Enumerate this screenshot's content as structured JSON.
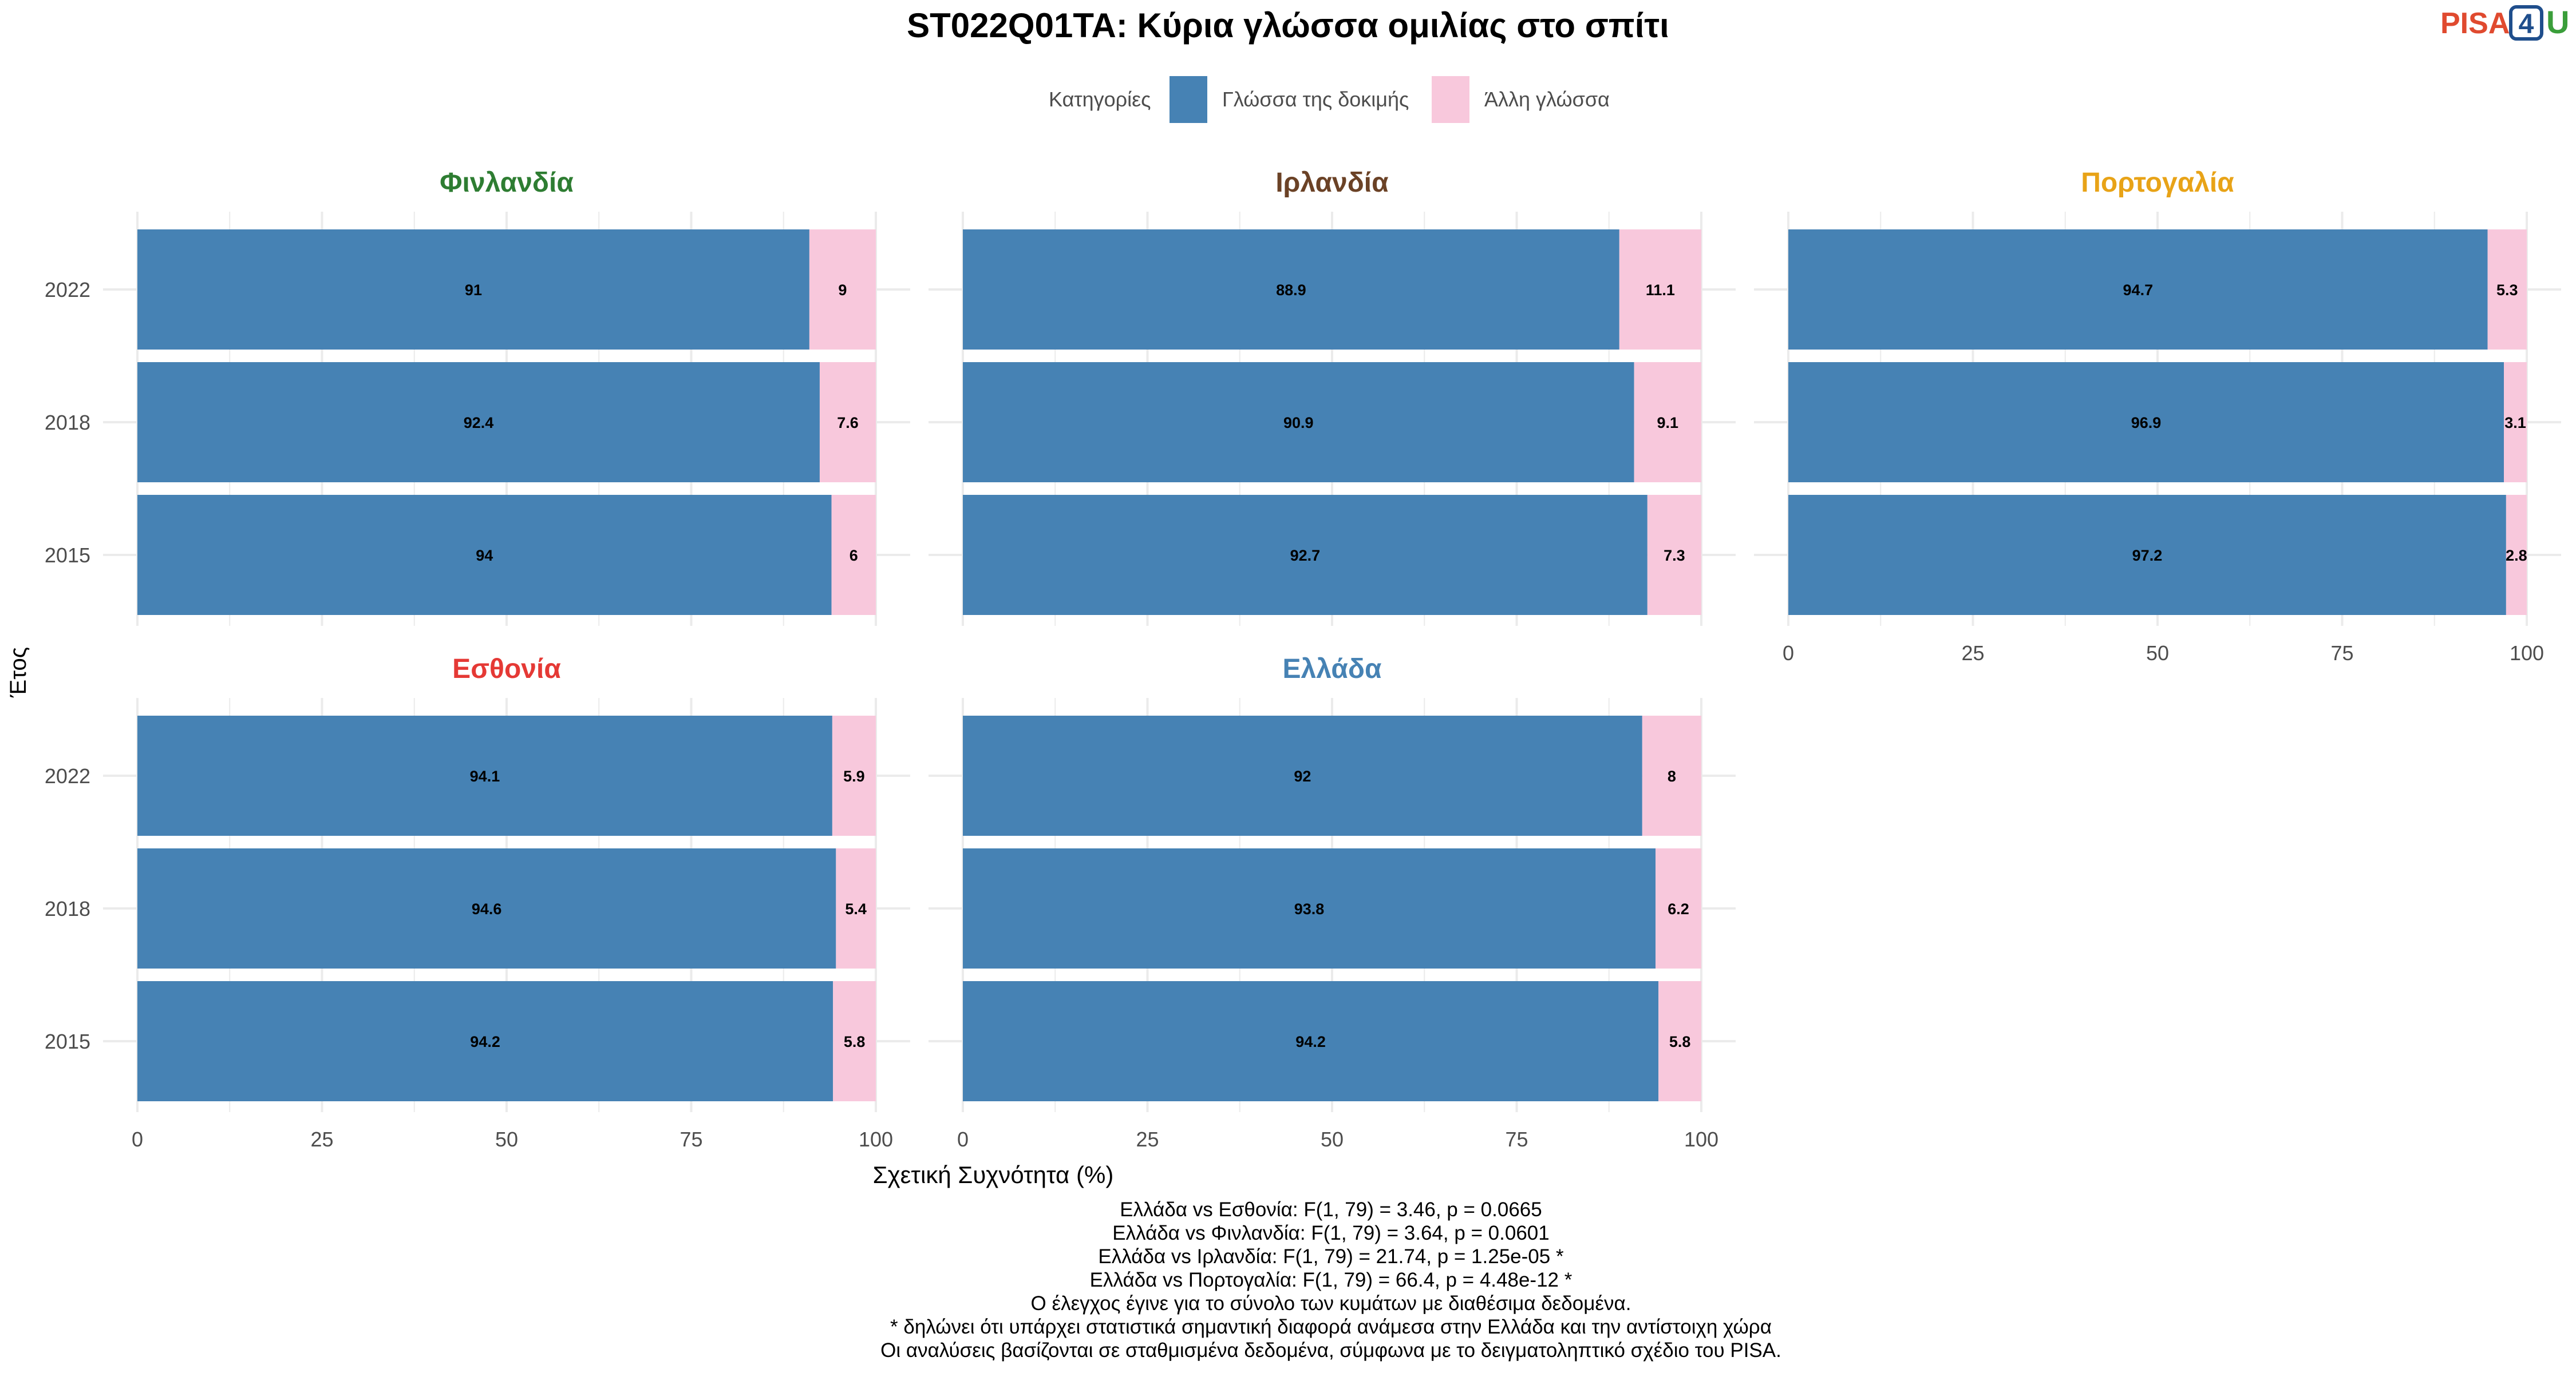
{
  "chart_data": {
    "type": "bar",
    "orientation": "horizontal",
    "stacked": true,
    "title": "ST022Q01TA: Κύρια γλώσσα ομιλίας στο σπίτι",
    "xlabel": "Σχετική Συχνότητα (%)",
    "ylabel": "Έτος",
    "xlim": [
      0,
      100
    ],
    "x_ticks": [
      "0",
      "25",
      "50",
      "75",
      "100"
    ],
    "grid": true,
    "legend": {
      "title": "Κατηγορίες",
      "position": "top",
      "entries": [
        {
          "name": "Γλώσσα της δοκιμής",
          "color": "#4682b4"
        },
        {
          "name": "Άλλη γλώσσα",
          "color": "#f8c8dc"
        }
      ]
    },
    "categories": [
      "2022",
      "2018",
      "2015"
    ],
    "panels": [
      {
        "name": "Φινλανδία",
        "title_color": "#2e7d32",
        "series": [
          {
            "name": "Γλώσσα της δοκιμής",
            "values": [
              91,
              92.4,
              94
            ]
          },
          {
            "name": "Άλλη γλώσσα",
            "values": [
              9,
              7.6,
              6
            ]
          }
        ]
      },
      {
        "name": "Ιρλανδία",
        "title_color": "#6b4226",
        "series": [
          {
            "name": "Γλώσσα της δοκιμής",
            "values": [
              88.9,
              90.9,
              92.7
            ]
          },
          {
            "name": "Άλλη γλώσσα",
            "values": [
              11.1,
              9.1,
              7.3
            ]
          }
        ]
      },
      {
        "name": "Πορτογαλία",
        "title_color": "#e8a317",
        "series": [
          {
            "name": "Γλώσσα της δοκιμής",
            "values": [
              94.7,
              96.9,
              97.2
            ]
          },
          {
            "name": "Άλλη γλώσσα",
            "values": [
              5.3,
              3.1,
              2.8
            ]
          }
        ]
      },
      {
        "name": "Εσθονία",
        "title_color": "#e53935",
        "series": [
          {
            "name": "Γλώσσα της δοκιμής",
            "values": [
              94.1,
              94.6,
              94.2
            ]
          },
          {
            "name": "Άλλη γλώσσα",
            "values": [
              5.9,
              5.4,
              5.8
            ]
          }
        ]
      },
      {
        "name": "Ελλάδα",
        "title_color": "#4682b4",
        "series": [
          {
            "name": "Γλώσσα της δοκιμής",
            "values": [
              92,
              93.8,
              94.2
            ]
          },
          {
            "name": "Άλλη γλώσσα",
            "values": [
              8,
              6.2,
              5.8
            ]
          }
        ]
      }
    ]
  },
  "logo": {
    "text_a": "PISA",
    "text_b": "4",
    "text_c": "U",
    "color_a": "#e04a2f",
    "color_b": "#1f4e8c",
    "color_c": "#3a9e3a"
  },
  "footer_lines": [
    "Ελλάδα vs Εσθονία: F(1, 79) = 3.46, p = 0.0665",
    "Ελλάδα vs Φινλανδία: F(1, 79) = 3.64, p = 0.0601",
    "Ελλάδα vs Ιρλανδία: F(1, 79) = 21.74, p = 1.25e-05 *",
    "Ελλάδα vs Πορτογαλία: F(1, 79) = 66.4, p = 4.48e-12 *",
    "Ο έλεγχος έγινε για το σύνολο των κυμάτων με διαθέσιμα δεδομένα.",
    "* δηλώνει ότι υπάρχει στατιστικά σημαντική διαφορά ανάμεσα στην Ελλάδα και την αντίστοιχη χώρα",
    "Οι αναλύσεις βασίζονται σε σταθμισμένα δεδομένα, σύμφωνα με το δειγματοληπτικό σχέδιο του PISA."
  ]
}
